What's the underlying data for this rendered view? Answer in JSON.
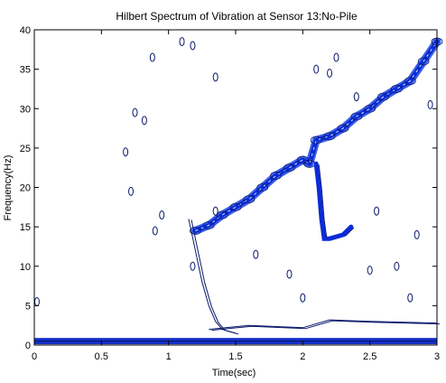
{
  "chart_data": {
    "type": "contour",
    "title": "Hilbert Spectrum of Vibration at Sensor 13:No-Pile",
    "xlabel": "Time(sec)",
    "ylabel": "Frequency(Hz)",
    "xlim": [
      0,
      3
    ],
    "ylim": [
      0,
      40
    ],
    "x_ticks": [
      0,
      0.5,
      1,
      1.5,
      2,
      2.5,
      3
    ],
    "y_ticks": [
      0,
      5,
      10,
      15,
      20,
      25,
      30,
      35,
      40
    ],
    "grid": false,
    "colors": {
      "strong": "#0b2bd6",
      "medium": "#3f63e6",
      "weak": "#0a1a6a",
      "baseband": "#1530c8"
    },
    "series": [
      {
        "id": "rising-chirp",
        "points": [
          [
            1.2,
            14.5
          ],
          [
            1.3,
            15.2
          ],
          [
            1.4,
            16.5
          ],
          [
            1.5,
            17.5
          ],
          [
            1.6,
            18.5
          ],
          [
            1.7,
            20
          ],
          [
            1.8,
            21.5
          ],
          [
            1.9,
            22.5
          ],
          [
            2.0,
            23.5
          ],
          [
            2.05,
            23
          ],
          [
            2.1,
            26
          ],
          [
            2.2,
            26.5
          ],
          [
            2.3,
            27.5
          ],
          [
            2.4,
            29
          ],
          [
            2.5,
            30
          ],
          [
            2.6,
            31.5
          ],
          [
            2.7,
            32.5
          ],
          [
            2.8,
            33.5
          ],
          [
            2.9,
            36
          ],
          [
            3.0,
            38.5
          ]
        ]
      },
      {
        "id": "falling-branch",
        "points": [
          [
            1.15,
            16
          ],
          [
            1.2,
            12
          ],
          [
            1.25,
            8
          ],
          [
            1.3,
            5
          ],
          [
            1.35,
            3
          ],
          [
            1.4,
            2
          ],
          [
            1.5,
            1.5
          ]
        ]
      },
      {
        "id": "dip-branch",
        "points": [
          [
            2.1,
            23
          ],
          [
            2.12,
            20
          ],
          [
            2.14,
            16
          ],
          [
            2.16,
            13.5
          ],
          [
            2.2,
            13.5
          ],
          [
            2.3,
            14
          ],
          [
            2.36,
            15
          ]
        ]
      },
      {
        "id": "lower-band",
        "points": [
          [
            1.3,
            2
          ],
          [
            1.6,
            2.5
          ],
          [
            2.0,
            2.2
          ],
          [
            2.2,
            3.2
          ],
          [
            2.5,
            3
          ],
          [
            3.0,
            2.8
          ]
        ]
      },
      {
        "id": "baseband",
        "points": [
          [
            0.0,
            0.5
          ],
          [
            3.0,
            0.5
          ]
        ]
      }
    ],
    "isolated_contours": [
      [
        0.68,
        24.5
      ],
      [
        0.72,
        19.5
      ],
      [
        0.75,
        29.5
      ],
      [
        0.82,
        28.5
      ],
      [
        0.88,
        36.5
      ],
      [
        0.9,
        14.5
      ],
      [
        0.95,
        16.5
      ],
      [
        1.1,
        38.5
      ],
      [
        1.18,
        38
      ],
      [
        1.18,
        10
      ],
      [
        1.35,
        34
      ],
      [
        1.35,
        17
      ],
      [
        1.65,
        11.5
      ],
      [
        1.9,
        9
      ],
      [
        2.0,
        6
      ],
      [
        2.1,
        35
      ],
      [
        2.2,
        34.5
      ],
      [
        2.25,
        36.5
      ],
      [
        2.4,
        31.5
      ],
      [
        2.5,
        9.5
      ],
      [
        2.55,
        17
      ],
      [
        2.7,
        10
      ],
      [
        2.8,
        6
      ],
      [
        2.85,
        14
      ],
      [
        2.95,
        30.5
      ],
      [
        0.02,
        5.5
      ]
    ]
  }
}
